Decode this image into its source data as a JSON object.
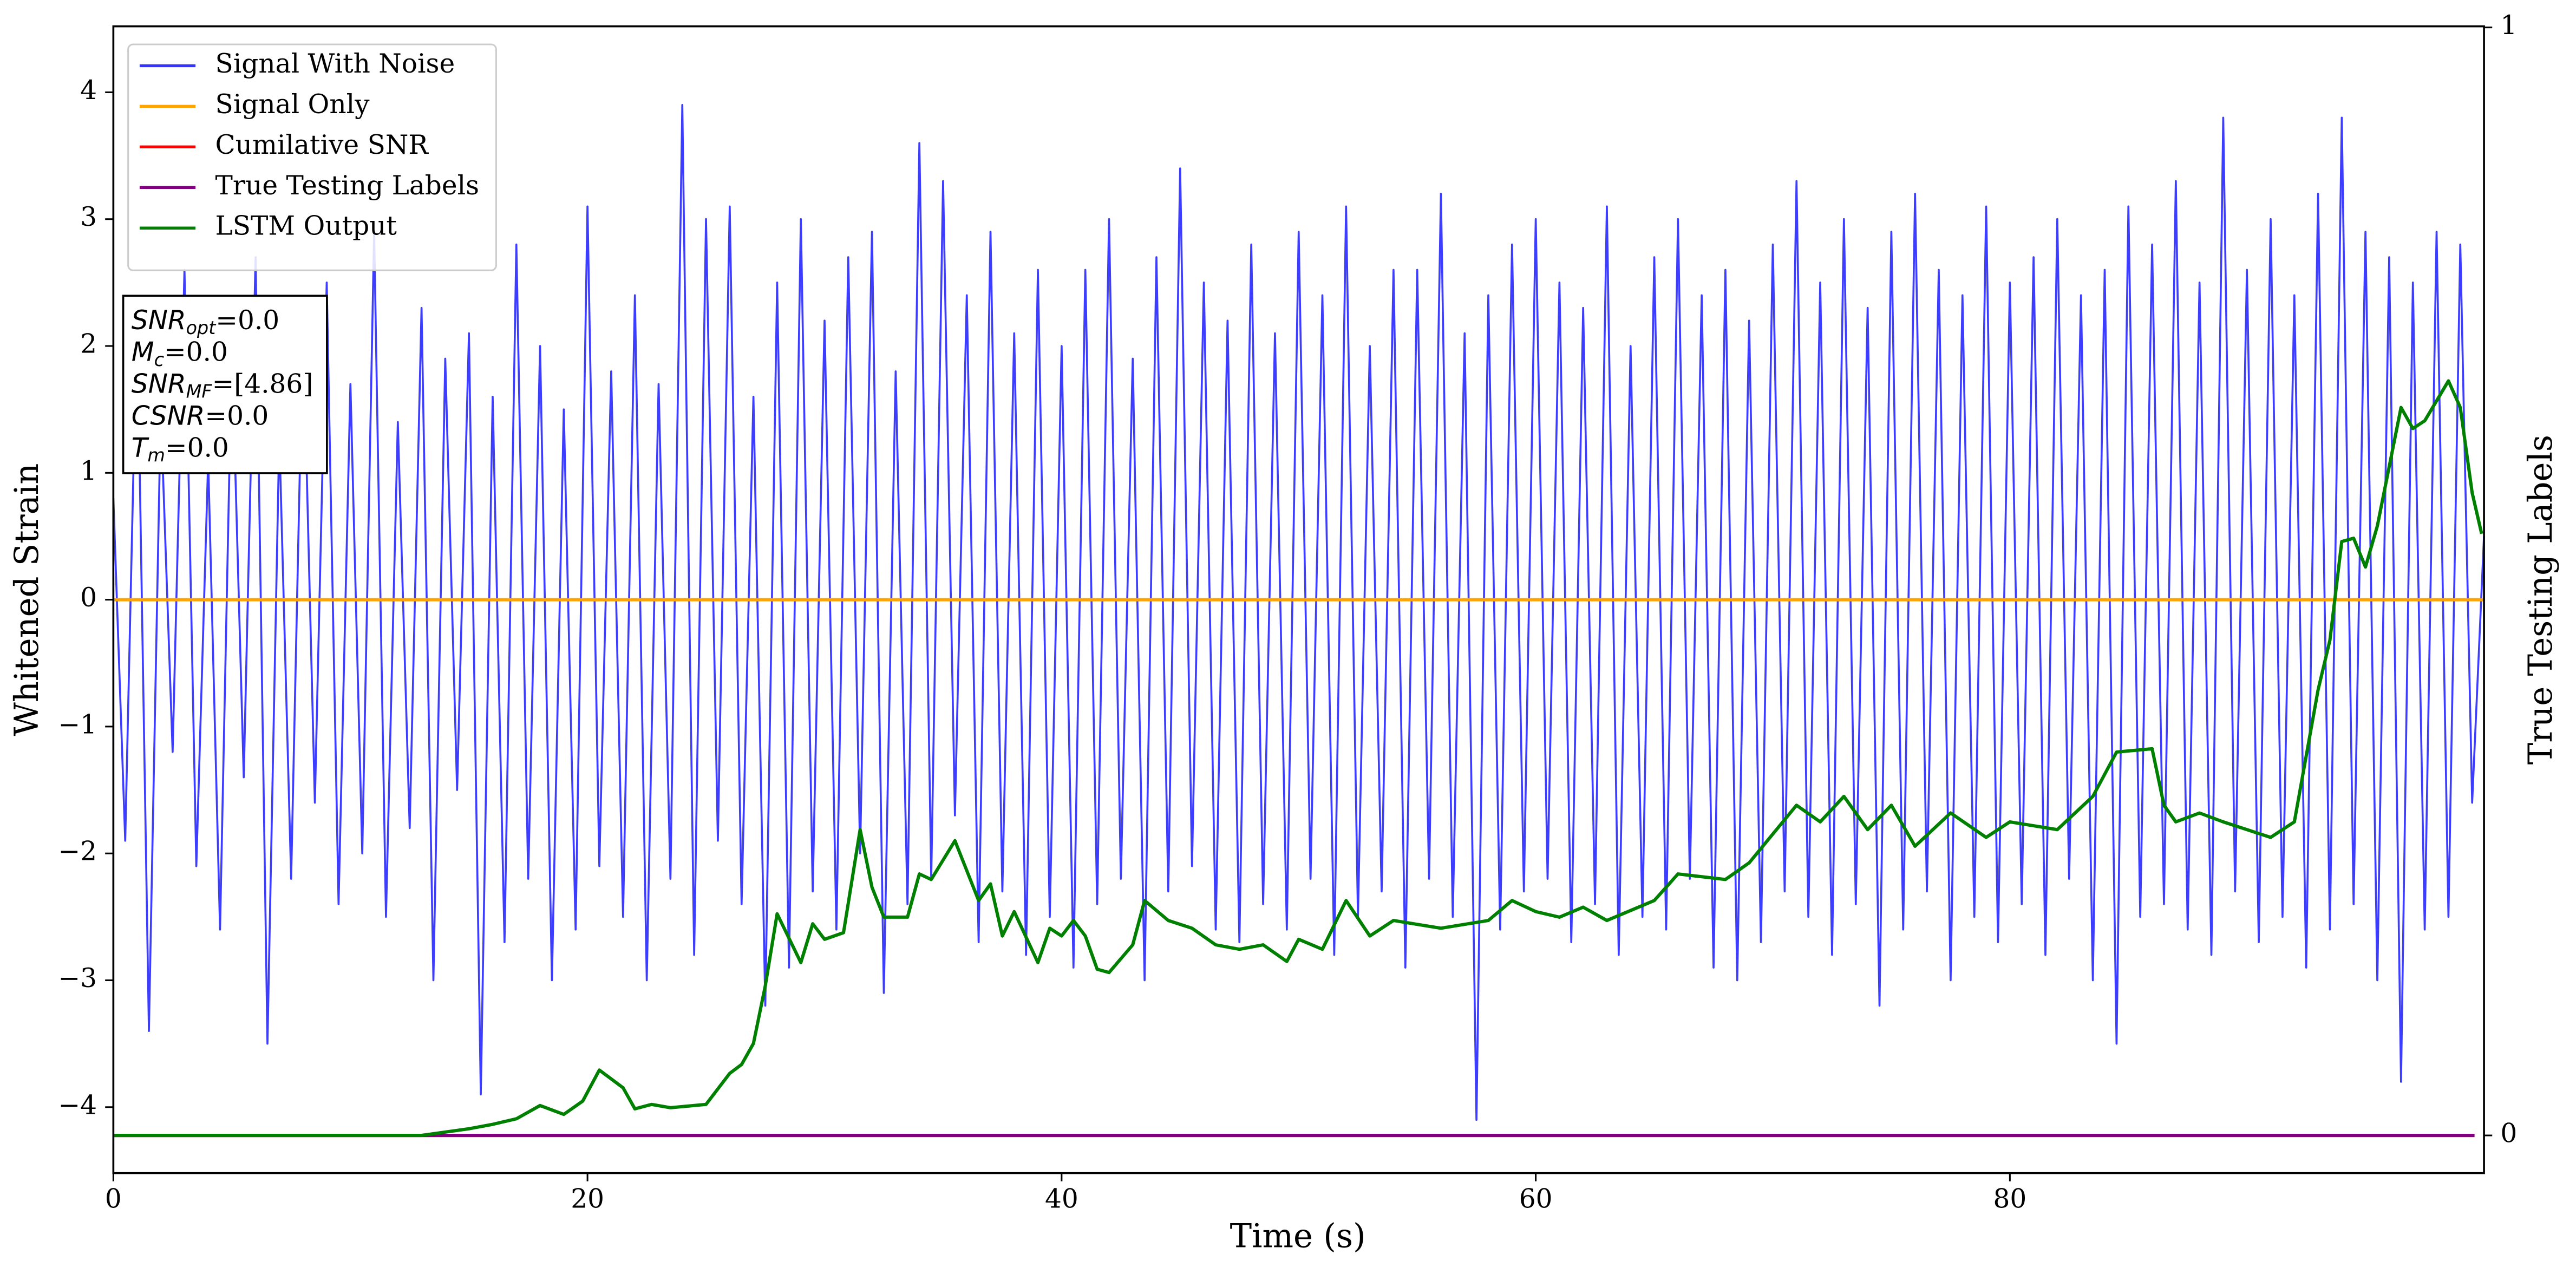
{
  "chart_data": {
    "type": "line",
    "xlabel": "Time (s)",
    "ylabel": "Whitened Strain",
    "y2label": "True Testing Labels",
    "xlim": [
      0,
      100
    ],
    "xticks": [
      0,
      20,
      40,
      60,
      80
    ],
    "ylim": [
      -4.52,
      4.52
    ],
    "yticks": [
      {
        "value": -4,
        "label": "−4"
      },
      {
        "value": -3,
        "label": "−3"
      },
      {
        "value": -2,
        "label": "−2"
      },
      {
        "value": -1,
        "label": "−1"
      },
      0,
      1,
      2,
      3,
      4
    ],
    "y2lim": [
      -0.034,
      1.001
    ],
    "y2ticks": [
      0,
      1
    ],
    "legend": "upper left",
    "grid": false,
    "stats_box": [
      [
        "SNR",
        "opt",
        "=0.0"
      ],
      [
        "M",
        "c",
        "=0.0"
      ],
      [
        "SNR",
        "MF",
        "=[4.86]"
      ],
      [
        "CSNR",
        "=0.0"
      ],
      [
        "T",
        "m",
        "=0.0"
      ]
    ],
    "series": [
      {
        "name": "Signal With Noise",
        "color": "#3333ff",
        "x": [
          0,
          0.5,
          1,
          1.5,
          2,
          2.5,
          3,
          3.5,
          4,
          4.5,
          5,
          5.5,
          6,
          6.5,
          7,
          7.5,
          8,
          8.5,
          9,
          9.5,
          10,
          10.5,
          11,
          11.5,
          12,
          12.5,
          13,
          13.5,
          14,
          14.5,
          15,
          15.5,
          16,
          16.5,
          17,
          17.5,
          18,
          18.5,
          19,
          19.5,
          20,
          20.5,
          21,
          21.5,
          22,
          22.5,
          23,
          23.5,
          24,
          24.5,
          25,
          25.5,
          26,
          26.5,
          27,
          27.5,
          28,
          28.5,
          29,
          29.5,
          30,
          30.5,
          31,
          31.5,
          32,
          32.5,
          33,
          33.5,
          34,
          34.5,
          35,
          35.5,
          36,
          36.5,
          37,
          37.5,
          38,
          38.5,
          39,
          39.5,
          40,
          40.5,
          41,
          41.5,
          42,
          42.5,
          43,
          43.5,
          44,
          44.5,
          45,
          45.5,
          46,
          46.5,
          47,
          47.5,
          48,
          48.5,
          49,
          49.5,
          50,
          50.5,
          51,
          51.5,
          52,
          52.5,
          53,
          53.5,
          54,
          54.5,
          55,
          55.5,
          56,
          56.5,
          57,
          57.5,
          58,
          58.5,
          59,
          59.5,
          60,
          60.5,
          61,
          61.5,
          62,
          62.5,
          63,
          63.5,
          64,
          64.5,
          65,
          65.5,
          66,
          66.5,
          67,
          67.5,
          68,
          68.5,
          69,
          69.5,
          70,
          70.5,
          71,
          71.5,
          72,
          72.5,
          73,
          73.5,
          74,
          74.5,
          75,
          75.5,
          76,
          76.5,
          77,
          77.5,
          78,
          78.5,
          79,
          79.5,
          80,
          80.5,
          81,
          81.5,
          82,
          82.5,
          83,
          83.5,
          84,
          84.5,
          85,
          85.5,
          86,
          86.5,
          87,
          87.5,
          88,
          88.5,
          89,
          89.5,
          90,
          90.5,
          91,
          91.5,
          92,
          92.5,
          93,
          93.5,
          94,
          94.5,
          95,
          95.5,
          96,
          96.5,
          97,
          97.5,
          98,
          98.5,
          99,
          99.5,
          100
        ],
        "values": [
          0.8,
          -1.9,
          2.3,
          -3.4,
          1.5,
          -1.2,
          2.6,
          -2.1,
          1.1,
          -2.6,
          2.0,
          -1.4,
          2.7,
          -3.5,
          1.3,
          -2.2,
          2.2,
          -1.6,
          2.5,
          -2.4,
          1.7,
          -2.0,
          2.9,
          -2.5,
          1.4,
          -1.8,
          2.3,
          -3.0,
          1.9,
          -1.5,
          2.1,
          -3.9,
          1.6,
          -2.7,
          2.8,
          -2.2,
          2.0,
          -3.0,
          1.5,
          -2.6,
          3.1,
          -2.1,
          1.8,
          -2.5,
          2.4,
          -3.0,
          1.7,
          -2.2,
          3.9,
          -2.8,
          3.0,
          -1.9,
          3.1,
          -2.4,
          1.6,
          -3.2,
          2.5,
          -2.9,
          3.0,
          -2.3,
          2.2,
          -2.6,
          2.7,
          -2.0,
          2.9,
          -3.1,
          1.8,
          -2.4,
          3.6,
          -2.2,
          3.3,
          -1.7,
          2.4,
          -2.7,
          2.9,
          -2.3,
          2.1,
          -2.8,
          2.6,
          -2.5,
          2.0,
          -2.9,
          2.6,
          -2.4,
          3.0,
          -2.2,
          1.9,
          -3.0,
          2.7,
          -2.3,
          3.4,
          -2.1,
          2.5,
          -2.6,
          2.2,
          -2.7,
          2.8,
          -2.4,
          2.1,
          -2.6,
          2.9,
          -2.2,
          2.4,
          -2.8,
          3.1,
          -2.5,
          2.0,
          -2.3,
          2.6,
          -2.9,
          2.6,
          -2.2,
          3.2,
          -2.5,
          2.1,
          -4.1,
          2.4,
          -2.6,
          2.8,
          -2.3,
          3.0,
          -2.2,
          2.5,
          -2.7,
          2.3,
          -2.4,
          3.1,
          -2.8,
          2.0,
          -2.5,
          2.7,
          -2.6,
          3.0,
          -2.2,
          2.4,
          -2.9,
          2.6,
          -3.0,
          2.2,
          -2.7,
          2.8,
          -2.3,
          3.3,
          -2.5,
          2.5,
          -2.8,
          3.0,
          -2.4,
          2.3,
          -3.2,
          2.9,
          -2.6,
          3.2,
          -2.3,
          2.6,
          -3.0,
          2.4,
          -2.5,
          3.1,
          -2.7,
          2.5,
          -2.4,
          2.7,
          -2.8,
          3.0,
          -2.2,
          2.4,
          -3.0,
          2.6,
          -3.5,
          3.1,
          -2.5,
          2.8,
          -2.4,
          3.3,
          -2.6,
          2.5,
          -2.8,
          3.8,
          -2.3,
          2.6,
          -2.7,
          3.0,
          -2.5,
          2.4,
          -2.9,
          3.2,
          -2.6,
          3.8,
          -2.4,
          2.9,
          -3.0,
          2.7,
          -3.8,
          2.5,
          -2.6,
          2.9,
          -2.5,
          2.8,
          -1.6,
          0.5
        ]
      },
      {
        "name": "Signal Only",
        "color": "#ffa500",
        "x": [
          0,
          100
        ],
        "values": [
          0,
          0
        ]
      },
      {
        "name": "Cumilative SNR",
        "color": "#ff0000",
        "axis": "y2",
        "x": [
          0,
          99.6
        ],
        "values": [
          0,
          0
        ]
      },
      {
        "name": "True Testing Labels",
        "color": "#800080",
        "axis": "y2",
        "x": [
          0,
          99.6
        ],
        "values": [
          0,
          0
        ]
      },
      {
        "name": "LSTM Output",
        "color": "#008000",
        "axis": "y2",
        "x": [
          0,
          13,
          14,
          15,
          16,
          17,
          18,
          19,
          19.8,
          20.5,
          21.5,
          22,
          22.7,
          23.5,
          25,
          26,
          26.5,
          27,
          27.5,
          28,
          29,
          29.5,
          30,
          30.8,
          31.5,
          32,
          32.5,
          33.5,
          34,
          34.5,
          35.5,
          36.5,
          37,
          37.5,
          38,
          39,
          39.5,
          40,
          40.5,
          41,
          41.5,
          42,
          43,
          43.5,
          44.5,
          45.5,
          46.5,
          47.5,
          48.5,
          49.5,
          50,
          51,
          52,
          53,
          54,
          56,
          58,
          59,
          60,
          61,
          62,
          63,
          65,
          66,
          68,
          69,
          71,
          72,
          73,
          74,
          75,
          76,
          77.5,
          79,
          80,
          82,
          83.5,
          84.5,
          86,
          86.5,
          87,
          88,
          89,
          90,
          91,
          92,
          93,
          93.5,
          94,
          94.5,
          95,
          95.5,
          96.5,
          97,
          97.5,
          98.5,
          99,
          99.5,
          99.9
        ],
        "values": [
          0,
          0,
          0.003,
          0.006,
          0.01,
          0.015,
          0.027,
          0.019,
          0.031,
          0.059,
          0.043,
          0.024,
          0.028,
          0.025,
          0.028,
          0.056,
          0.064,
          0.083,
          0.135,
          0.2,
          0.156,
          0.191,
          0.177,
          0.183,
          0.276,
          0.224,
          0.197,
          0.197,
          0.236,
          0.231,
          0.266,
          0.212,
          0.227,
          0.18,
          0.202,
          0.156,
          0.187,
          0.18,
          0.194,
          0.18,
          0.15,
          0.147,
          0.172,
          0.212,
          0.194,
          0.187,
          0.172,
          0.168,
          0.172,
          0.157,
          0.177,
          0.168,
          0.212,
          0.18,
          0.194,
          0.187,
          0.194,
          0.212,
          0.202,
          0.197,
          0.206,
          0.194,
          0.212,
          0.236,
          0.231,
          0.246,
          0.298,
          0.283,
          0.306,
          0.276,
          0.298,
          0.261,
          0.291,
          0.269,
          0.283,
          0.276,
          0.306,
          0.346,
          0.349,
          0.298,
          0.283,
          0.291,
          0.283,
          0.276,
          0.269,
          0.283,
          0.402,
          0.447,
          0.536,
          0.539,
          0.513,
          0.55,
          0.657,
          0.638,
          0.645,
          0.681,
          0.657,
          0.58,
          0.543
        ]
      }
    ]
  }
}
